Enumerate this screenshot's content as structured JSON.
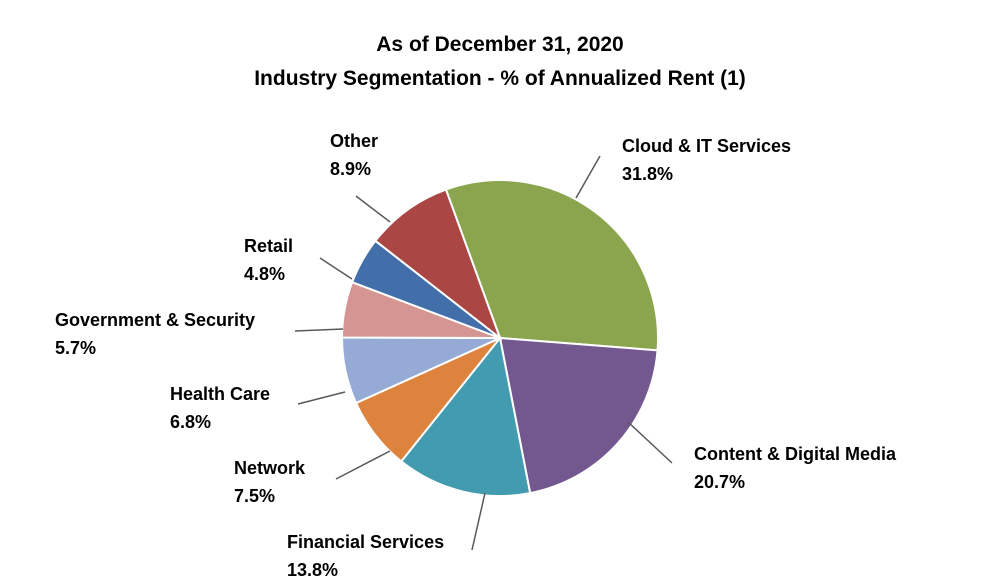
{
  "chart_data": {
    "type": "pie",
    "title": "As of December 31, 2020",
    "subtitle": "Industry Segmentation - % of Annualized Rent (1)",
    "slices": [
      {
        "label": "Cloud & IT Services",
        "value": 31.8,
        "value_label": "31.8%",
        "color": "#8aa54d"
      },
      {
        "label": "Content & Digital Media",
        "value": 20.7,
        "value_label": "20.7%",
        "color": "#73588f"
      },
      {
        "label": "Financial Services",
        "value": 13.8,
        "value_label": "13.8%",
        "color": "#439bb0"
      },
      {
        "label": "Network",
        "value": 7.5,
        "value_label": "7.5%",
        "color": "#de833e"
      },
      {
        "label": "Health Care",
        "value": 6.8,
        "value_label": "6.8%",
        "color": "#95abd5"
      },
      {
        "label": "Government & Security",
        "value": 5.7,
        "value_label": "5.7%",
        "color": "#d59593"
      },
      {
        "label": "Retail",
        "value": 4.8,
        "value_label": "4.8%",
        "color": "#426fa9"
      },
      {
        "label": "Other",
        "value": 8.9,
        "value_label": "8.9%",
        "color": "#aa4644"
      }
    ]
  }
}
